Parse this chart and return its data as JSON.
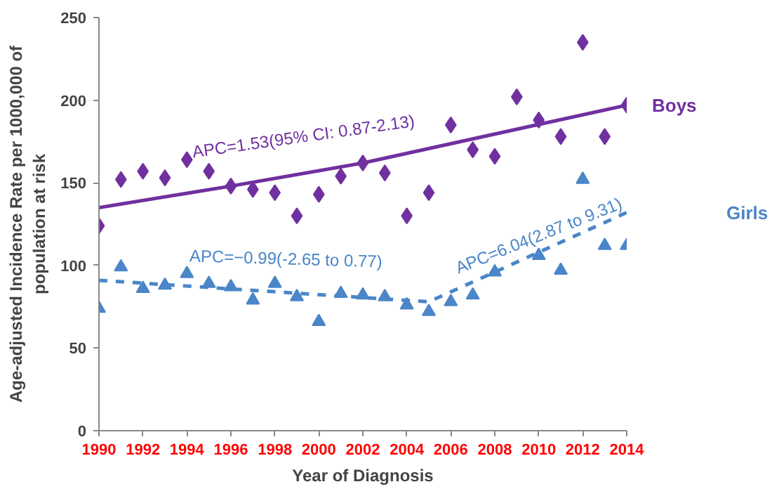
{
  "chart_data": {
    "type": "scatter",
    "xlabel": "Year of Diagnosis",
    "ylabel": "Age-adjusted Incidence Rate per 1000,000 of population at risk",
    "x": [
      1990,
      1991,
      1992,
      1993,
      1994,
      1995,
      1996,
      1997,
      1998,
      1999,
      2000,
      2001,
      2002,
      2003,
      2004,
      2005,
      2006,
      2007,
      2008,
      2009,
      2010,
      2011,
      2012,
      2013,
      2014
    ],
    "series": [
      {
        "name": "Boys",
        "color": "#7030a0",
        "marker": "diamond",
        "values": [
          124,
          152,
          157,
          153,
          164,
          157,
          148,
          146,
          144,
          130,
          143,
          154,
          162,
          156,
          130,
          144,
          185,
          170,
          166,
          202,
          188,
          178,
          235,
          178,
          197
        ]
      },
      {
        "name": "Girls",
        "color": "#4a86c8",
        "marker": "triangle",
        "values": [
          74,
          99,
          86,
          88,
          95,
          89,
          87,
          79,
          89,
          81,
          66,
          83,
          82,
          81,
          76,
          72,
          78,
          82,
          96,
          null,
          106,
          97,
          152,
          112,
          112
        ]
      },
      {
        "type": "line",
        "color": "#7030a0",
        "line_style": "solid",
        "x": [
          1990,
          1996,
          2002,
          2014
        ],
        "values": [
          135,
          148,
          162,
          197
        ]
      },
      {
        "type": "line",
        "color": "#4a86c8",
        "line_style": "dashed",
        "x": [
          1990,
          2005,
          2014
        ],
        "values": [
          91,
          78,
          132
        ]
      }
    ],
    "xlim": [
      1990,
      2014
    ],
    "xticks": [
      1990,
      1992,
      1994,
      1996,
      1998,
      2000,
      2002,
      2004,
      2006,
      2008,
      2010,
      2012,
      2014
    ],
    "ylim": [
      0,
      250
    ],
    "yticks": [
      0,
      50,
      100,
      150,
      200,
      250
    ],
    "annotations": [
      "APC=1.53(95% CI: 0.87-2.13)",
      "APC=−0.99(-2.65 to 0.77)",
      "APC=6.04(2.87 to 9.31)"
    ],
    "grid": false
  }
}
